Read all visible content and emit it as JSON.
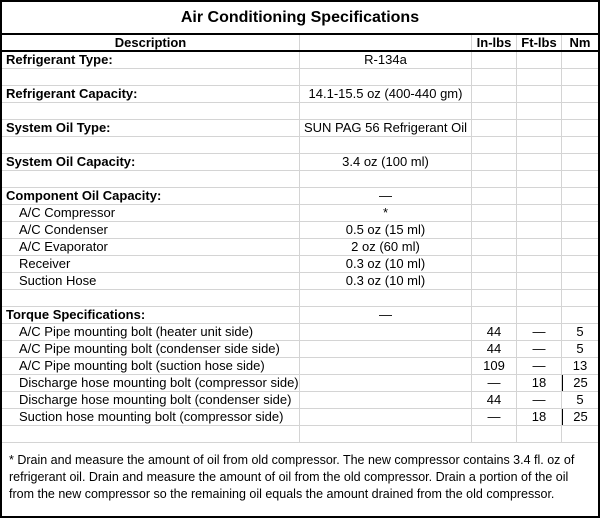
{
  "title": "Air Conditioning Specifications",
  "columns": {
    "description": "Description",
    "value": "",
    "inlbs": "In-lbs",
    "ftlbs": "Ft-lbs",
    "nm": "Nm"
  },
  "table": {
    "rows": [
      {
        "label": "Refrigerant Type:",
        "bold": true,
        "indent": false,
        "value": "R-134a",
        "inlbs": "",
        "ftlbs": "",
        "nm": ""
      },
      {
        "label": "",
        "bold": false,
        "indent": false,
        "value": "",
        "inlbs": "",
        "ftlbs": "",
        "nm": ""
      },
      {
        "label": "Refrigerant Capacity:",
        "bold": true,
        "indent": false,
        "value": "14.1-15.5 oz (400-440 gm)",
        "inlbs": "",
        "ftlbs": "",
        "nm": ""
      },
      {
        "label": "",
        "bold": false,
        "indent": false,
        "value": "",
        "inlbs": "",
        "ftlbs": "",
        "nm": ""
      },
      {
        "label": "System Oil Type:",
        "bold": true,
        "indent": false,
        "value": "SUN PAG 56 Refrigerant Oil",
        "inlbs": "",
        "ftlbs": "",
        "nm": ""
      },
      {
        "label": "",
        "bold": false,
        "indent": false,
        "value": "",
        "inlbs": "",
        "ftlbs": "",
        "nm": ""
      },
      {
        "label": "System Oil Capacity:",
        "bold": true,
        "indent": false,
        "value": "3.4 oz (100 ml)",
        "inlbs": "",
        "ftlbs": "",
        "nm": ""
      },
      {
        "label": "",
        "bold": false,
        "indent": false,
        "value": "",
        "inlbs": "",
        "ftlbs": "",
        "nm": ""
      },
      {
        "label": "Component Oil Capacity:",
        "bold": true,
        "indent": false,
        "value": "—",
        "inlbs": "",
        "ftlbs": "",
        "nm": ""
      },
      {
        "label": "A/C Compressor",
        "bold": false,
        "indent": true,
        "value": "*",
        "inlbs": "",
        "ftlbs": "",
        "nm": ""
      },
      {
        "label": "A/C Condenser",
        "bold": false,
        "indent": true,
        "value": "0.5 oz (15 ml)",
        "inlbs": "",
        "ftlbs": "",
        "nm": ""
      },
      {
        "label": "A/C Evaporator",
        "bold": false,
        "indent": true,
        "value": "2 oz (60 ml)",
        "inlbs": "",
        "ftlbs": "",
        "nm": ""
      },
      {
        "label": "Receiver",
        "bold": false,
        "indent": true,
        "value": "0.3 oz (10 ml)",
        "inlbs": "",
        "ftlbs": "",
        "nm": ""
      },
      {
        "label": "Suction Hose",
        "bold": false,
        "indent": true,
        "value": "0.3 oz (10 ml)",
        "inlbs": "",
        "ftlbs": "",
        "nm": ""
      },
      {
        "label": "",
        "bold": false,
        "indent": false,
        "value": "",
        "inlbs": "",
        "ftlbs": "",
        "nm": ""
      },
      {
        "label": "Torque Specifications:",
        "bold": true,
        "indent": false,
        "value": "—",
        "inlbs": "",
        "ftlbs": "",
        "nm": ""
      },
      {
        "label": "A/C Pipe mounting bolt (heater unit side)",
        "bold": false,
        "indent": true,
        "value": "",
        "inlbs": "44",
        "ftlbs": "—",
        "nm": "5"
      },
      {
        "label": "A/C Pipe mounting bolt (condenser side side)",
        "bold": false,
        "indent": true,
        "value": "",
        "inlbs": "44",
        "ftlbs": "—",
        "nm": "5"
      },
      {
        "label": "A/C Pipe mounting bolt (suction hose side)",
        "bold": false,
        "indent": true,
        "value": "",
        "inlbs": "109",
        "ftlbs": "—",
        "nm": "13"
      },
      {
        "label": "Discharge hose mounting bolt (compressor side)",
        "bold": false,
        "indent": true,
        "value": "",
        "inlbs": "—",
        "ftlbs": "18",
        "nm": "25",
        "nm_dark": true
      },
      {
        "label": "Discharge hose mounting bolt (condenser side)",
        "bold": false,
        "indent": true,
        "value": "",
        "inlbs": "44",
        "ftlbs": "—",
        "nm": "5"
      },
      {
        "label": "Suction hose mounting bolt (compressor side)",
        "bold": false,
        "indent": true,
        "value": "",
        "inlbs": "—",
        "ftlbs": "18",
        "nm": "25",
        "nm_dark": true
      },
      {
        "label": "",
        "bold": false,
        "indent": false,
        "value": "",
        "inlbs": "",
        "ftlbs": "",
        "nm": ""
      }
    ]
  },
  "footnote": "* Drain and measure the amount of oil from old compressor. The new compressor contains 3.4 fl. oz of refrigerant oil. Drain and measure the amount of oil from the old compressor. Drain a portion of the oil from the new compressor so the remaining oil equals the amount drained from the old compressor.",
  "colors": {
    "grid": "#d4d4d4",
    "border": "#000000",
    "text": "#000000",
    "background": "#ffffff"
  }
}
